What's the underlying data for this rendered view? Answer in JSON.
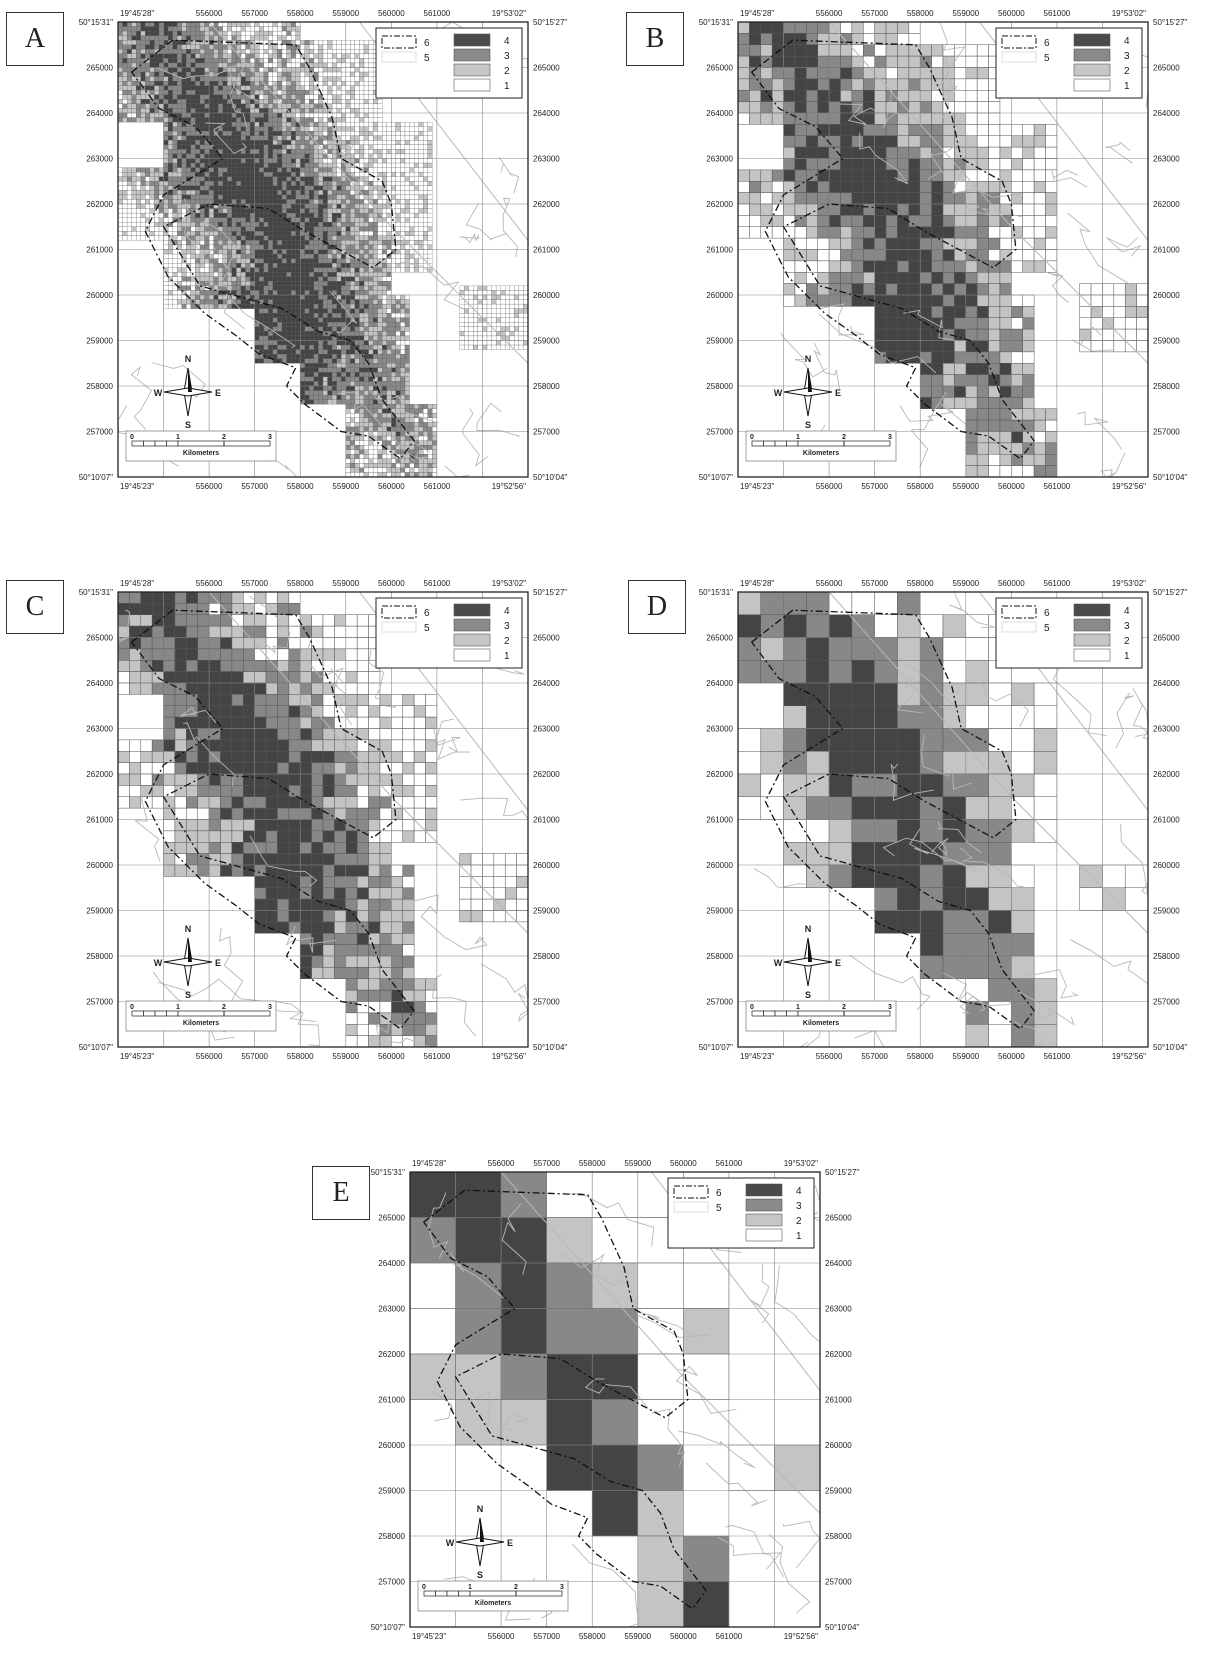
{
  "panels": [
    {
      "id": "A",
      "label": "A",
      "res": 0.1,
      "seed": 11
    },
    {
      "id": "B",
      "label": "B",
      "res": 0.25,
      "seed": 23
    },
    {
      "id": "C",
      "label": "C",
      "res": 0.25,
      "seed": 37
    },
    {
      "id": "D",
      "label": "D",
      "res": 0.5,
      "seed": 51
    },
    {
      "id": "E",
      "label": "E",
      "res": 1.0,
      "seed": 67
    }
  ],
  "corners_ab": {
    "top_left": "19°45'28\"",
    "top_right": "19°53'02\"",
    "bottom_left": "19°45'23\"",
    "bottom_right": "19°52'56\"",
    "left_top": "50°15'31\"",
    "left_bottom": "50°10'07\"",
    "right_top": "50°15'27\"",
    "right_bottom": "50°10'04\""
  },
  "corners_e": {
    "top_left": "19°45'28\"",
    "top_right": "19°53'02\"",
    "bottom_left": "19°45'23\"",
    "bottom_right": "19°52'56\"",
    "left_top": "50°15'31\"",
    "left_bottom": "50°10'07\"",
    "right_top": "50°15'27\"",
    "right_bottom": "50°10'04\""
  },
  "x_ticks": [
    "556000",
    "557000",
    "558000",
    "559000",
    "560000",
    "561000"
  ],
  "y_ticks": [
    "265000",
    "264000",
    "263000",
    "262000",
    "261000",
    "260000",
    "259000",
    "258000",
    "257000"
  ],
  "legend": {
    "boundary_a": "6",
    "boundary_b": "5",
    "classes": [
      {
        "label": "4",
        "color": "#4a4a4a"
      },
      {
        "label": "3",
        "color": "#8a8a8a"
      },
      {
        "label": "2",
        "color": "#c6c6c6"
      },
      {
        "label": "1",
        "color": "#ffffff"
      }
    ]
  },
  "compass": {
    "n": "N",
    "s": "S",
    "e": "E",
    "w": "W"
  },
  "scalebar": {
    "ticks": [
      "0",
      "1",
      "2",
      "3"
    ],
    "unit": "Kilometers"
  },
  "colors": {
    "class4": "#444444",
    "class3": "#888888",
    "class2": "#c4c4c4",
    "class1": "#ffffff",
    "grid": "#555555",
    "contour": "#b8b8b8",
    "frame": "#222222"
  }
}
